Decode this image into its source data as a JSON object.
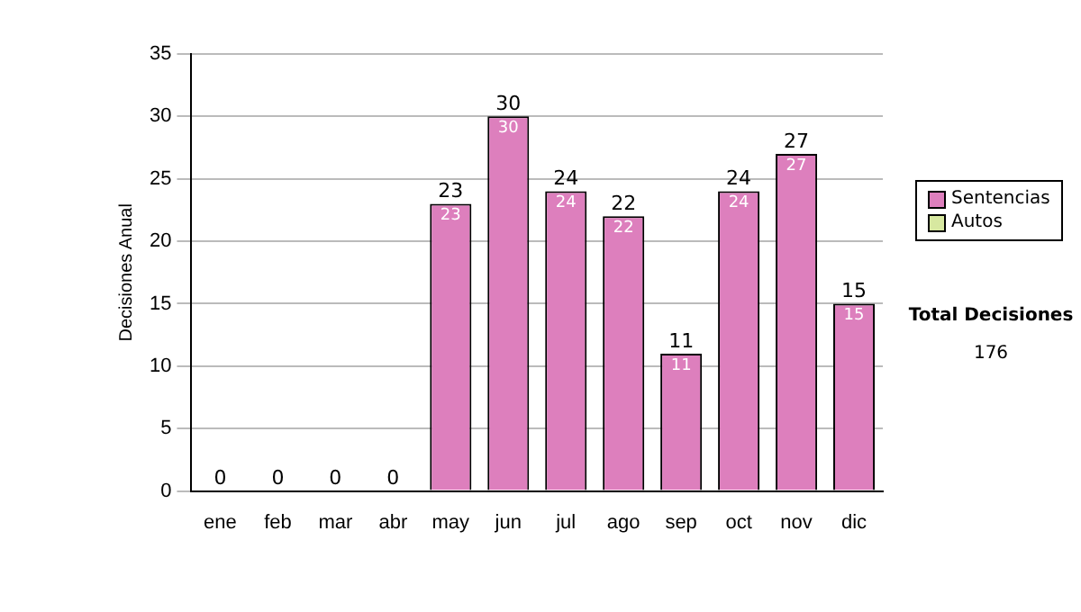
{
  "chart_data": {
    "type": "bar",
    "ylabel": "Decisiones Anual",
    "categories": [
      "ene",
      "feb",
      "mar",
      "abr",
      "may",
      "jun",
      "jul",
      "ago",
      "sep",
      "oct",
      "nov",
      "dic"
    ],
    "series": [
      {
        "name": "Sentencias",
        "color": "#dd7fbd",
        "values": [
          0,
          0,
          0,
          0,
          23,
          30,
          24,
          22,
          11,
          24,
          27,
          15
        ],
        "value_labels": [
          null,
          null,
          null,
          null,
          "23",
          "30",
          "24",
          "22",
          "11",
          "24",
          "27",
          "15"
        ]
      },
      {
        "name": "Autos",
        "color": "#d7e8a0",
        "values": [
          0,
          0,
          0,
          0,
          0,
          0,
          0,
          0,
          0,
          0,
          0,
          0
        ]
      }
    ],
    "stacked": true,
    "totals": [
      "0",
      "0",
      "0",
      "0",
      "23",
      "30",
      "24",
      "22",
      "11",
      "24",
      "27",
      "15"
    ],
    "ylim": [
      0,
      35
    ],
    "yticks": [
      0,
      5,
      10,
      15,
      20,
      25,
      30,
      35
    ],
    "grid": "y",
    "legend": "right",
    "annotations": [
      "Total Decisiones",
      "176"
    ]
  }
}
